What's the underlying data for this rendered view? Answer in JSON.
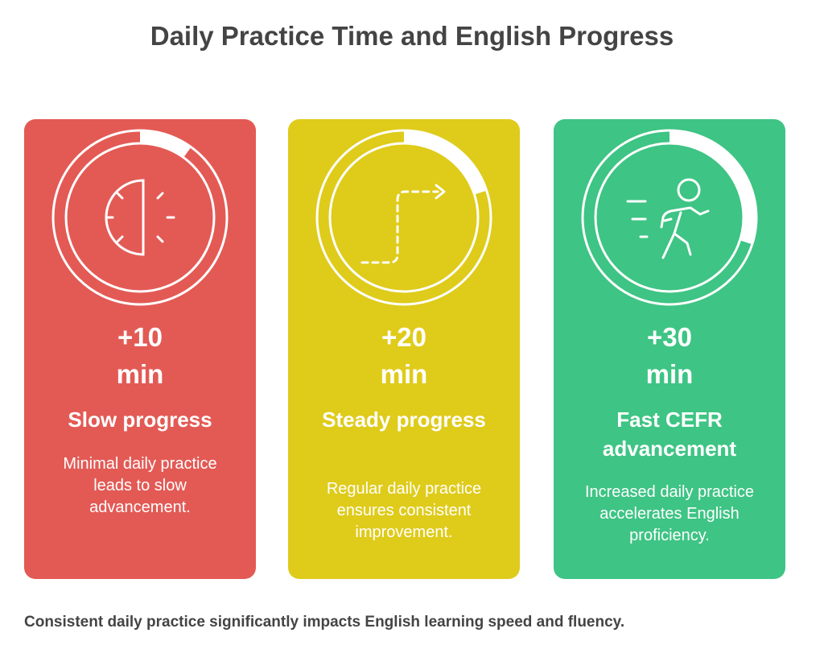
{
  "title": "Daily Practice Time and English Progress",
  "cards": [
    {
      "amount_line1": "+10",
      "amount_line2": "min",
      "heading": "Slow progress",
      "description": "Minimal daily practice leads to slow advancement.",
      "color": "#E35A55",
      "progress": 0.1,
      "icon": "half-clock-icon"
    },
    {
      "amount_line1": "+20",
      "amount_line2": "min",
      "heading": "Steady progress",
      "description": "Regular daily practice ensures consistent improvement.",
      "color": "#DFCB1A",
      "progress": 0.2,
      "icon": "dashed-path-arrow-icon"
    },
    {
      "amount_line1": "+30",
      "amount_line2": "min",
      "heading": "Fast CEFR advancement",
      "description": "Increased daily practice accelerates English proficiency.",
      "color": "#3EC484",
      "progress": 0.3,
      "icon": "running-person-icon"
    }
  ],
  "footer": "Consistent daily practice significantly impacts English learning speed and fluency."
}
